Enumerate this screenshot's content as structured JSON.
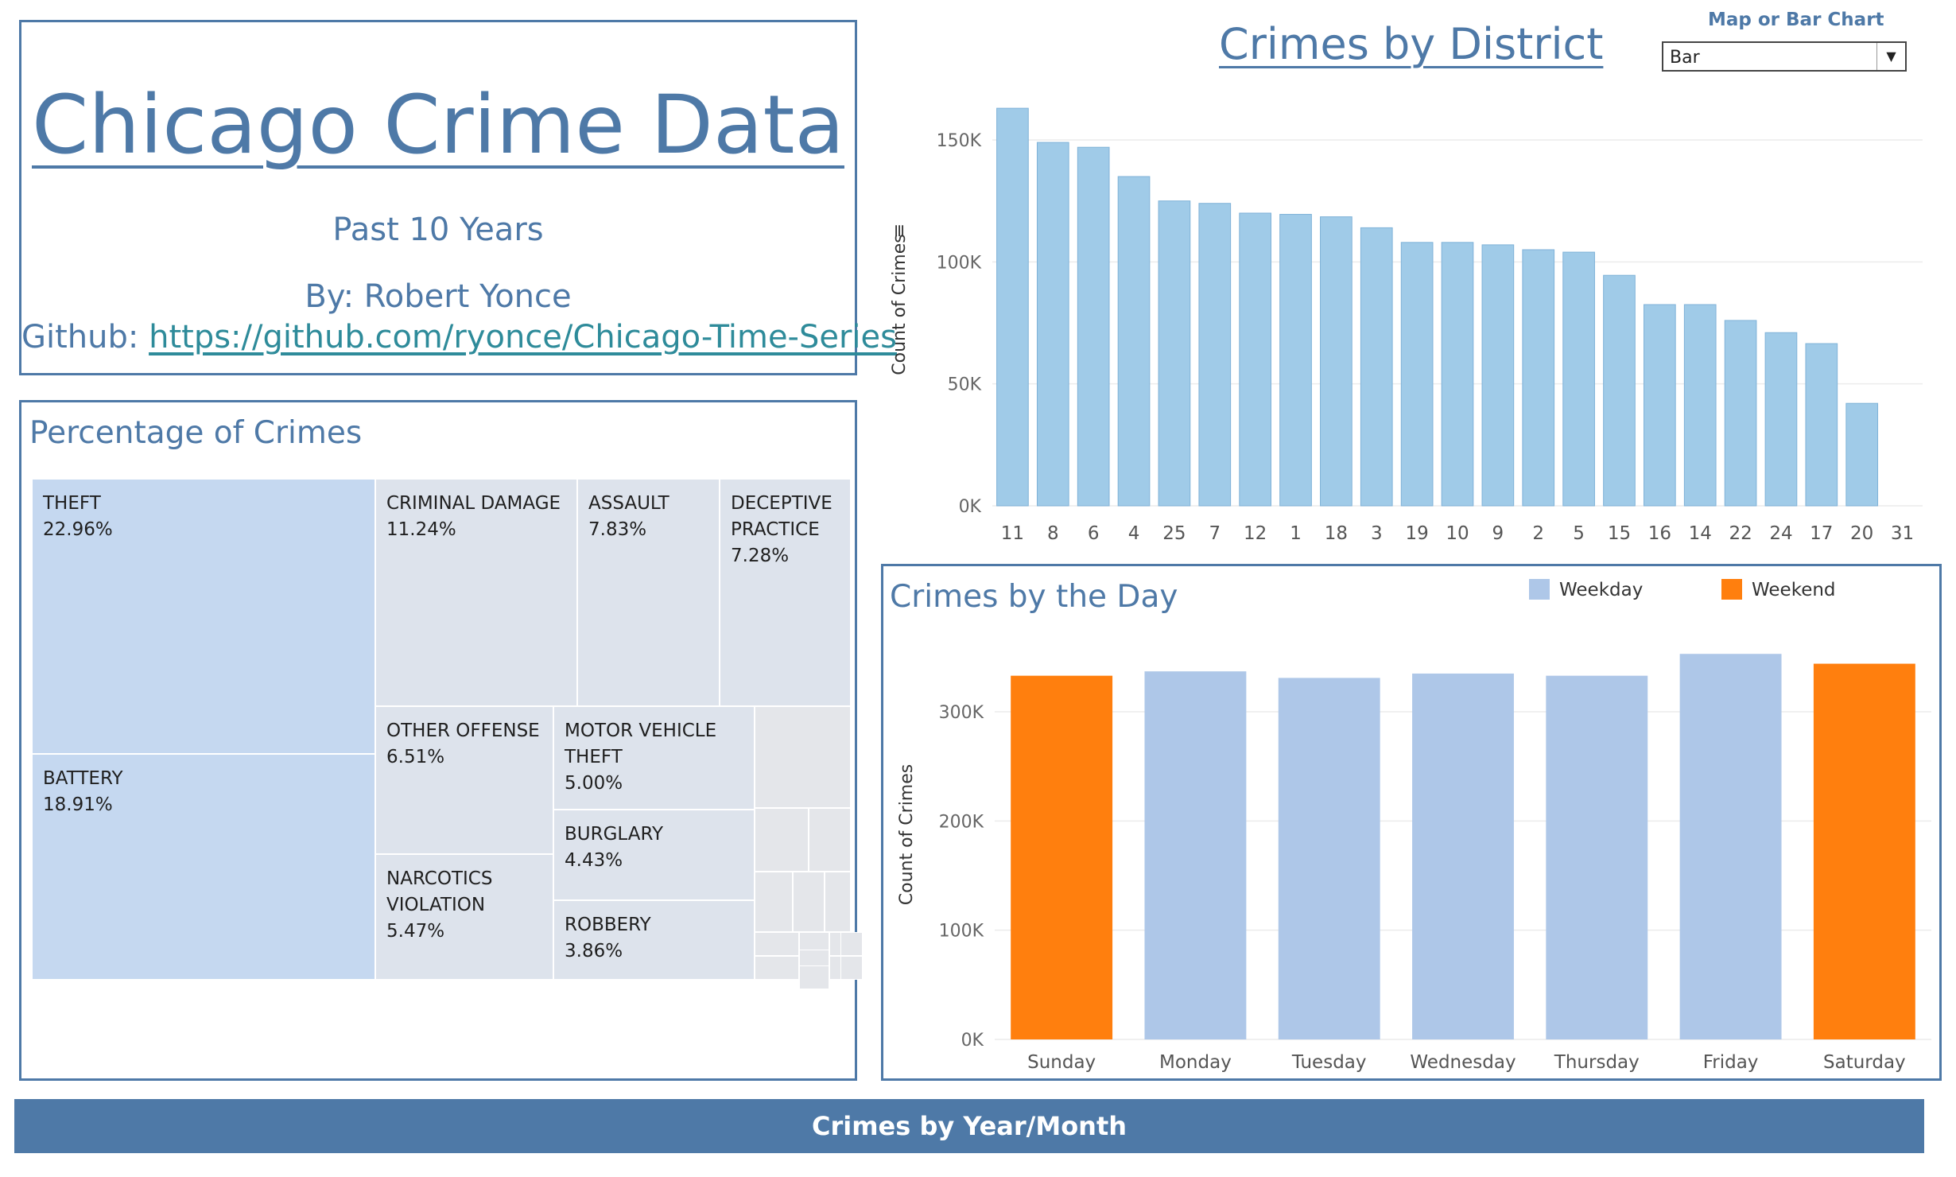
{
  "header": {
    "title": "Chicago Crime Data",
    "subtitle": "Past 10 Years",
    "author": "By: Robert Yonce",
    "github_label": "Github:",
    "github_url": "https://github.com/ryonce/Chicago-Time-Series"
  },
  "treemap": {
    "title": "Percentage of Crimes",
    "tiles": [
      {
        "name": "THEFT",
        "pct": "22.96%"
      },
      {
        "name": "BATTERY",
        "pct": "18.91%"
      },
      {
        "name": "CRIMINAL DAMAGE",
        "pct": "11.24%"
      },
      {
        "name": "ASSAULT",
        "pct": "7.83%"
      },
      {
        "name": "DECEPTIVE\nPRACTICE",
        "pct": "7.28%"
      },
      {
        "name": "OTHER OFFENSE",
        "pct": "6.51%"
      },
      {
        "name": "MOTOR VEHICLE\nTHEFT",
        "pct": "5.00%"
      },
      {
        "name": "NARCOTICS\nVIOLATION",
        "pct": "5.47%"
      },
      {
        "name": "BURGLARY",
        "pct": "4.43%"
      },
      {
        "name": "ROBBERY",
        "pct": "3.86%"
      }
    ]
  },
  "district": {
    "title": "Crimes by District",
    "control_label": "Map or Bar Chart",
    "control_value": "Bar"
  },
  "day": {
    "title": "Crimes by the Day",
    "legend": [
      {
        "label": "Weekday",
        "color": "#aec7e8"
      },
      {
        "label": "Weekend",
        "color": "#ff7f0e"
      }
    ]
  },
  "bottom_bar": {
    "label": "Crimes by Year/Month"
  },
  "chart_data": [
    {
      "type": "bar",
      "title": "Crimes by District",
      "ylabel": "Count of Crimes",
      "xlabel": "",
      "categories": [
        "11",
        "8",
        "6",
        "4",
        "25",
        "7",
        "12",
        "1",
        "18",
        "3",
        "19",
        "10",
        "9",
        "2",
        "5",
        "15",
        "16",
        "14",
        "22",
        "24",
        "17",
        "20",
        "31"
      ],
      "values": [
        163000,
        149000,
        147000,
        135000,
        125000,
        124000,
        120000,
        119500,
        118500,
        114000,
        108000,
        108000,
        107000,
        105000,
        104000,
        94500,
        82500,
        82500,
        76000,
        71000,
        66500,
        42000,
        0
      ],
      "ylim": [
        0,
        165000
      ],
      "yticks": [
        0,
        50000,
        100000,
        150000
      ],
      "ytick_labels": [
        "0K",
        "50K",
        "100K",
        "150K"
      ],
      "color": "#a0cbe8",
      "grid": true
    },
    {
      "type": "bar",
      "title": "Crimes by the Day",
      "ylabel": "Count of Crimes",
      "xlabel": "",
      "categories": [
        "Sunday",
        "Monday",
        "Tuesday",
        "Wednesday",
        "Thursday",
        "Friday",
        "Saturday"
      ],
      "values": [
        333000,
        337000,
        331000,
        335000,
        333000,
        353000,
        344000
      ],
      "kind": [
        "Weekend",
        "Weekday",
        "Weekday",
        "Weekday",
        "Weekday",
        "Weekday",
        "Weekend"
      ],
      "ylim": [
        0,
        375000
      ],
      "yticks": [
        0,
        100000,
        200000,
        300000
      ],
      "ytick_labels": [
        "0K",
        "100K",
        "200K",
        "300K"
      ],
      "legend": "top-right",
      "grid": true
    }
  ]
}
